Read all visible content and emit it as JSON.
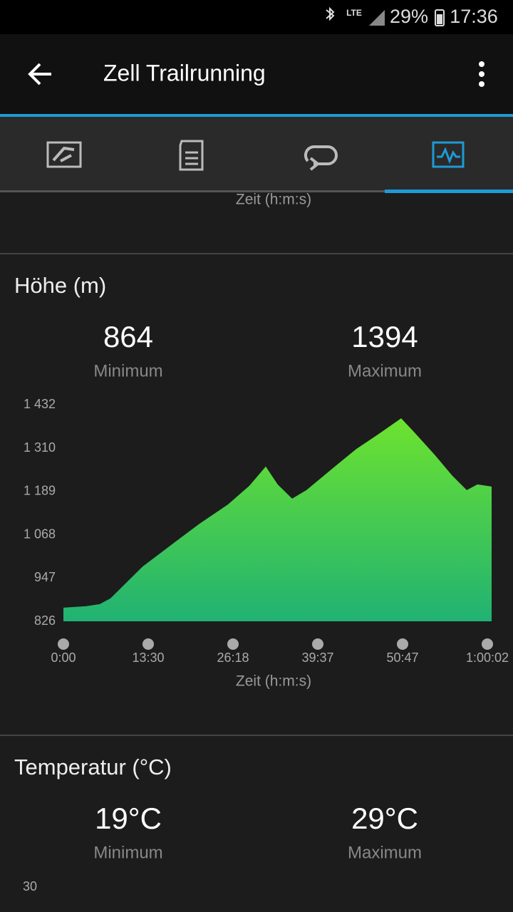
{
  "status_bar": {
    "network": "LTE",
    "battery": "29%",
    "time": "17:36"
  },
  "app_bar": {
    "title": "Zell Trailrunning"
  },
  "previous_section": {
    "x_label": "Zeit (h:m:s)"
  },
  "elevation": {
    "title": "Höhe (m)",
    "min_value": "864",
    "min_label": "Minimum",
    "max_value": "1394",
    "max_label": "Maximum"
  },
  "chart_data": {
    "type": "area",
    "x": [
      0,
      211,
      347,
      449,
      756,
      1016,
      1275,
      1533,
      1732,
      1887,
      1999,
      2135,
      2270,
      2512,
      2681,
      2850,
      3036,
      3117,
      3257,
      3373,
      3467,
      3537,
      3630
    ],
    "values": [
      864,
      868,
      874,
      890,
      979,
      1039,
      1099,
      1153,
      1205,
      1259,
      1209,
      1169,
      1193,
      1259,
      1308,
      1348,
      1394,
      1358,
      1292,
      1233,
      1193,
      1209,
      1203
    ],
    "xlim": [
      0,
      3630
    ],
    "xticks": [
      {
        "value": 0,
        "label": "0:00"
      },
      {
        "value": 810,
        "label": "13:30"
      },
      {
        "value": 1578,
        "label": "26:18"
      },
      {
        "value": 2377,
        "label": "39:37"
      },
      {
        "value": 3047,
        "label": "50:47"
      },
      {
        "value": 3602,
        "label": "1:00:02"
      }
    ],
    "ylim": [
      826,
      1432
    ],
    "yticks": [
      826,
      947,
      {
        "value": 1068,
        "label": "1 068"
      },
      {
        "value": 1189,
        "label": "1 189"
      },
      {
        "value": 1310,
        "label": "1 310"
      },
      {
        "value": 1432,
        "label": "1 432"
      }
    ],
    "x_label": "Zeit (h:m:s)",
    "color_top": "#72e62a",
    "color_bottom": "#20b273"
  },
  "temperature": {
    "title": "Temperatur (°C)",
    "min_value": "19°C",
    "min_label": "Minimum",
    "max_value": "29°C",
    "max_label": "Maximum",
    "first_tick": "30"
  }
}
